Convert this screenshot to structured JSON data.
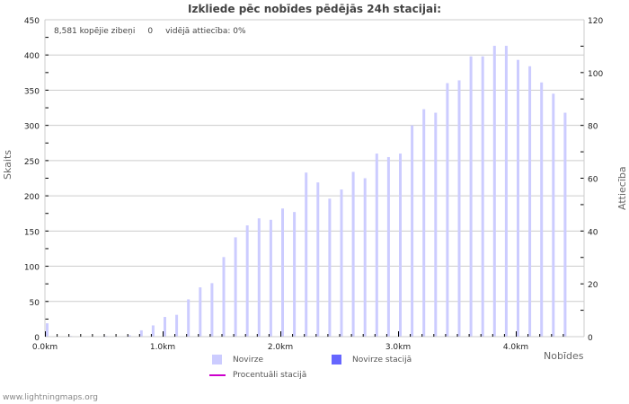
{
  "title": "Izkliede pēc nobīdes pēdējās 24h stacijai:",
  "stats": {
    "total": "8,581 kopējie zibeņi",
    "station": "0",
    "ratio": "vidējā attiecība: 0%"
  },
  "axes": {
    "left_label": "Skaits",
    "right_label": "Attiecība [%]",
    "x_label": "Nobīdes"
  },
  "legend": {
    "novirze": "Novirze",
    "novirze_stacija": "Novirze stacijā",
    "procentuali": "Procentuāli stacijā"
  },
  "colors": {
    "novirze": "#ccccff",
    "novirze_stacija": "#6666ff",
    "procentuali": "#cc00cc",
    "grid": "#cccccc"
  },
  "footer": "www.lightningmaps.org",
  "chart_data": {
    "type": "bar",
    "title": "Izkliede pēc nobīdes pēdējās 24h stacijai:",
    "xlabel": "Nobīdes",
    "ylabel": "Skaits",
    "y2label": "Attiecība [%]",
    "ylim": [
      0,
      450
    ],
    "y2lim": [
      0,
      120
    ],
    "yticks": [
      0,
      50,
      100,
      150,
      200,
      250,
      300,
      350,
      400,
      450
    ],
    "y2ticks": [
      0,
      20,
      40,
      60,
      80,
      100,
      120
    ],
    "xticks": [
      "0.0km",
      "1.0km",
      "2.0km",
      "3.0km",
      "4.0km"
    ],
    "grid": true,
    "legend_position": "bottom",
    "categories": [
      0.0,
      0.1,
      0.2,
      0.3,
      0.4,
      0.5,
      0.6,
      0.7,
      0.8,
      0.9,
      1.0,
      1.1,
      1.2,
      1.3,
      1.4,
      1.5,
      1.6,
      1.7,
      1.8,
      1.9,
      2.0,
      2.1,
      2.2,
      2.3,
      2.4,
      2.5,
      2.6,
      2.7,
      2.8,
      2.9,
      3.0,
      3.1,
      3.2,
      3.3,
      3.4,
      3.5,
      3.6,
      3.7,
      3.8,
      3.9,
      4.0,
      4.1,
      4.2,
      4.3,
      4.4
    ],
    "series": [
      {
        "name": "Novirze",
        "values": [
          19,
          0,
          1,
          0,
          0,
          1,
          0,
          2,
          9,
          16,
          28,
          31,
          53,
          70,
          76,
          113,
          141,
          158,
          168,
          166,
          182,
          177,
          233,
          219,
          196,
          209,
          234,
          225,
          260,
          255,
          260,
          300,
          323,
          318,
          360,
          364,
          398,
          398,
          413,
          413,
          393,
          384,
          361,
          345,
          318
        ]
      },
      {
        "name": "Novirze stacijā",
        "values": [
          0,
          0,
          0,
          0,
          0,
          0,
          0,
          0,
          0,
          0,
          0,
          0,
          0,
          0,
          0,
          0,
          0,
          0,
          0,
          0,
          0,
          0,
          0,
          0,
          0,
          0,
          0,
          0,
          0,
          0,
          0,
          0,
          0,
          0,
          0,
          0,
          0,
          0,
          0,
          0,
          0,
          0,
          0,
          0,
          0
        ]
      },
      {
        "name": "Procentuāli stacijā",
        "values": [
          0,
          0,
          0,
          0,
          0,
          0,
          0,
          0,
          0,
          0,
          0,
          0,
          0,
          0,
          0,
          0,
          0,
          0,
          0,
          0,
          0,
          0,
          0,
          0,
          0,
          0,
          0,
          0,
          0,
          0,
          0,
          0,
          0,
          0,
          0,
          0,
          0,
          0,
          0,
          0,
          0,
          0,
          0,
          0,
          0
        ]
      }
    ]
  }
}
